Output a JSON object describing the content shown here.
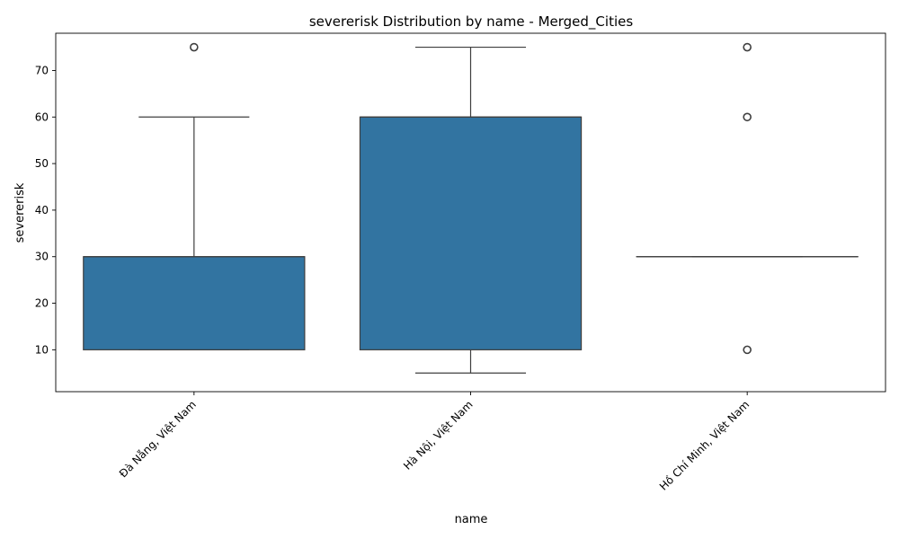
{
  "chart_data": {
    "type": "box",
    "title": "severerisk Distribution by name - Merged_Cities",
    "xlabel": "name",
    "ylabel": "severerisk",
    "categories": [
      "Đà Nẵng, Việt Nam",
      "Hà Nội, Việt Nam",
      "Hồ Chí Minh, Việt Nam"
    ],
    "ylim": [
      1,
      78
    ],
    "yticks": [
      10,
      20,
      30,
      40,
      50,
      60,
      70
    ],
    "grid": false,
    "boxes": [
      {
        "name": "Đà Nẵng, Việt Nam",
        "whisker_low": 10,
        "q1": 10,
        "median": 30,
        "q3": 30,
        "whisker_high": 60,
        "outliers": [
          75
        ]
      },
      {
        "name": "Hà Nội, Việt Nam",
        "whisker_low": 5,
        "q1": 10,
        "median": 60,
        "q3": 60,
        "whisker_high": 75,
        "outliers": []
      },
      {
        "name": "Hồ Chí Minh, Việt Nam",
        "whisker_low": 30,
        "q1": 30,
        "median": 30,
        "q3": 30,
        "whisker_high": 30,
        "outliers": [
          10,
          60,
          75
        ]
      }
    ],
    "colors": {
      "box_fill": "#3274a1",
      "line": "#3f3f3f",
      "axis": "#000000"
    }
  }
}
